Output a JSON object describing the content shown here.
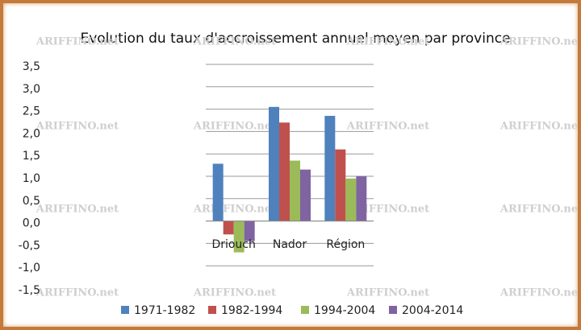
{
  "chart_data": {
    "type": "bar",
    "title": "Evolution du taux d'accroissement annuel moyen par province",
    "watermark": "ARIFFINO.net",
    "categories": [
      "Driouch",
      "Nador",
      "Région"
    ],
    "series": [
      {
        "name": "1971-1982",
        "color": "#4f81bd",
        "values": [
          1.28,
          2.55,
          2.35
        ]
      },
      {
        "name": "1982-1994",
        "color": "#c0504d",
        "values": [
          -0.3,
          2.2,
          1.6
        ]
      },
      {
        "name": "1994-2004",
        "color": "#9bbb59",
        "values": [
          -0.7,
          1.35,
          0.95
        ]
      },
      {
        "name": "2004-2014",
        "color": "#8064a2",
        "values": [
          -0.45,
          1.15,
          1.0
        ]
      }
    ],
    "ylim": [
      -1.5,
      3.5
    ],
    "yticks": [
      {
        "value": -1.5,
        "label": "-1,5"
      },
      {
        "value": -1.0,
        "label": "-1,0"
      },
      {
        "value": -0.5,
        "label": "-0,5"
      },
      {
        "value": 0,
        "label": "0,0"
      },
      {
        "value": 0.5,
        "label": "0,5"
      },
      {
        "value": 1.0,
        "label": "1,0"
      },
      {
        "value": 1.5,
        "label": "1,5"
      },
      {
        "value": 2.0,
        "label": "2,0"
      },
      {
        "value": 2.5,
        "label": "2,5"
      },
      {
        "value": 3.0,
        "label": "3,0"
      },
      {
        "value": 3.5,
        "label": "3,5"
      }
    ],
    "grid": true,
    "legend": "bottom"
  }
}
